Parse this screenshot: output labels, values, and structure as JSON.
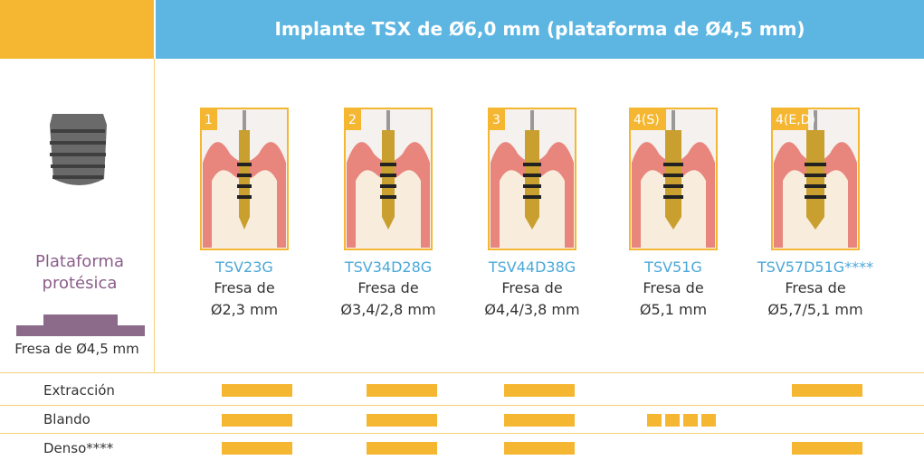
{
  "header": {
    "title": "Implante TSX de Ø6,0 mm (plataforma de Ø4,5 mm)"
  },
  "left": {
    "platform_label": "Plataforma protésica",
    "drill_label": "Fresa de Ø4,5 mm"
  },
  "drills": [
    {
      "step": "1",
      "code": "TSV23G",
      "name": "Fresa de",
      "size": "Ø2,3 mm"
    },
    {
      "step": "2",
      "code": "TSV34D28G",
      "name": "Fresa de",
      "size": "Ø3,4/2,8 mm"
    },
    {
      "step": "3",
      "code": "TSV44D38G",
      "name": "Fresa de",
      "size": "Ø4,4/3,8 mm"
    },
    {
      "step": "4(S)",
      "code": "TSV51G",
      "name": "Fresa de",
      "size": "Ø5,1 mm"
    },
    {
      "step": "4(E,D)",
      "code": "TSV57D51G****",
      "name": "Fresa de",
      "size": "Ø5,7/5,1 mm"
    }
  ],
  "rows": [
    "Extracción",
    "Blando",
    "Denso****"
  ]
}
